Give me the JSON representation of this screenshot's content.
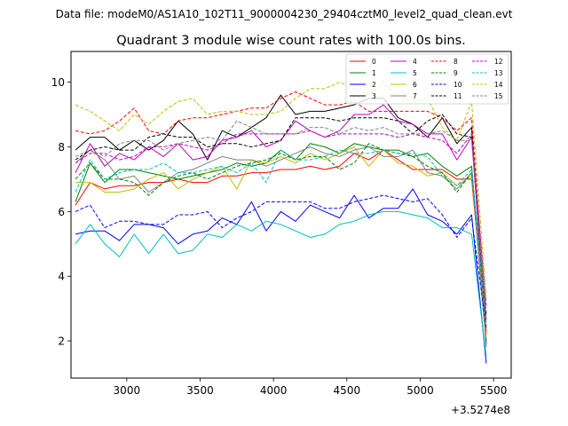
{
  "chart_data": {
    "type": "line",
    "suptitle": "Data file: modeM0/AS1A10_102T11_9000004230_29404cztM0_level2_quad_clean.evt",
    "title": "Quadrant 3 module wise count rates with 100.0s bins.",
    "xlabel": "",
    "ylabel": "",
    "xlim": [
      2620,
      5620
    ],
    "ylim": [
      0.85,
      10.95
    ],
    "x_offset_label": "+3.5274e8",
    "xticks": [
      3000,
      3500,
      4000,
      4500,
      5000,
      5500
    ],
    "xtick_labels": [
      "3000",
      "3500",
      "4000",
      "4500",
      "5000",
      "5500"
    ],
    "yticks": [
      2,
      4,
      6,
      8,
      10
    ],
    "ytick_labels": [
      "2",
      "4",
      "6",
      "8",
      "10"
    ],
    "legend_position": "top-right",
    "x": [
      2650,
      2750,
      2850,
      2950,
      3050,
      3150,
      3250,
      3350,
      3450,
      3550,
      3650,
      3750,
      3850,
      3950,
      4050,
      4150,
      4250,
      4350,
      4450,
      4550,
      4650,
      4750,
      4850,
      4950,
      5050,
      5150,
      5250,
      5350,
      5450
    ],
    "series": [
      {
        "name": "0",
        "color": "#ff0000",
        "dash": "solid",
        "values": [
          6.2,
          6.9,
          6.7,
          6.8,
          6.8,
          6.9,
          6.9,
          7.0,
          6.9,
          6.9,
          7.1,
          7.1,
          7.2,
          7.2,
          7.3,
          7.3,
          7.4,
          7.3,
          7.4,
          7.8,
          7.6,
          7.9,
          7.6,
          7.3,
          7.3,
          7.3,
          7.0,
          7.0,
          2.3
        ]
      },
      {
        "name": "1",
        "color": "#008000",
        "dash": "solid",
        "values": [
          6.3,
          7.5,
          6.9,
          7.3,
          7.3,
          7.2,
          7.1,
          7.0,
          7.1,
          7.2,
          7.3,
          7.5,
          7.4,
          7.5,
          7.9,
          7.6,
          8.1,
          8.0,
          7.8,
          8.1,
          8.0,
          7.9,
          7.9,
          7.7,
          7.8,
          7.4,
          7.1,
          7.4,
          2.0
        ]
      },
      {
        "name": "2",
        "color": "#0000ff",
        "dash": "solid",
        "values": [
          5.3,
          5.4,
          5.4,
          5.1,
          5.6,
          5.6,
          5.5,
          5.0,
          5.3,
          5.4,
          5.8,
          5.6,
          6.3,
          5.4,
          6.0,
          5.7,
          6.2,
          6.0,
          5.8,
          6.5,
          5.8,
          6.1,
          6.1,
          6.7,
          5.9,
          5.7,
          5.3,
          5.9,
          1.3
        ]
      },
      {
        "name": "3",
        "color": "#000000",
        "dash": "solid",
        "values": [
          7.9,
          8.3,
          8.3,
          7.9,
          8.2,
          7.9,
          8.2,
          8.8,
          8.4,
          7.6,
          8.5,
          8.3,
          8.6,
          8.9,
          9.6,
          9.0,
          9.1,
          9.1,
          9.2,
          9.3,
          9.5,
          9.5,
          8.9,
          8.7,
          8.3,
          8.9,
          8.1,
          8.6,
          1.9
        ]
      },
      {
        "name": "4",
        "color": "#bf00bf",
        "dash": "solid",
        "values": [
          7.2,
          8.1,
          7.4,
          7.8,
          7.6,
          8.0,
          7.7,
          8.1,
          7.6,
          7.7,
          8.2,
          8.3,
          8.5,
          8.0,
          8.2,
          8.8,
          8.5,
          8.3,
          8.5,
          9.0,
          9.0,
          9.3,
          8.8,
          8.7,
          8.4,
          8.4,
          7.6,
          8.3,
          2.2
        ]
      },
      {
        "name": "5",
        "color": "#00bfbf",
        "dash": "solid",
        "values": [
          5.0,
          5.6,
          5.0,
          4.6,
          5.3,
          4.7,
          5.3,
          4.7,
          4.8,
          5.3,
          5.2,
          5.6,
          5.4,
          5.7,
          5.6,
          5.4,
          5.2,
          5.3,
          5.6,
          5.7,
          5.9,
          6.0,
          6.0,
          5.9,
          5.8,
          5.5,
          5.5,
          5.3,
          1.5
        ]
      },
      {
        "name": "6",
        "color": "#bfbf00",
        "dash": "solid",
        "values": [
          6.9,
          6.9,
          6.6,
          6.6,
          6.7,
          7.0,
          7.2,
          6.7,
          7.0,
          7.2,
          7.4,
          6.7,
          7.6,
          7.5,
          7.7,
          7.5,
          7.8,
          7.6,
          7.8,
          8.0,
          7.4,
          7.9,
          7.5,
          7.4,
          7.1,
          7.2,
          6.8,
          7.1,
          2.1
        ]
      },
      {
        "name": "7",
        "color": "#808080",
        "dash": "solid",
        "values": [
          7.5,
          7.9,
          7.6,
          7.0,
          7.1,
          6.6,
          6.9,
          7.2,
          7.3,
          7.5,
          7.7,
          7.6,
          7.6,
          7.4,
          7.6,
          7.8,
          8.0,
          7.8,
          7.7,
          7.9,
          8.0,
          7.7,
          7.7,
          7.9,
          7.2,
          7.1,
          6.7,
          7.2,
          1.8
        ]
      },
      {
        "name": "8",
        "color": "#ff0000",
        "dash": "dashed",
        "values": [
          8.5,
          8.4,
          8.5,
          8.8,
          9.2,
          8.5,
          8.4,
          8.8,
          8.9,
          8.9,
          9.0,
          9.1,
          9.2,
          9.2,
          9.5,
          9.7,
          9.5,
          9.3,
          9.3,
          9.4,
          9.1,
          9.1,
          9.1,
          9.1,
          9.1,
          8.9,
          8.5,
          8.9,
          2.6
        ]
      },
      {
        "name": "9",
        "color": "#008000",
        "dash": "dashed",
        "values": [
          7.0,
          7.5,
          7.0,
          7.0,
          6.9,
          6.5,
          6.9,
          7.1,
          7.2,
          7.0,
          7.2,
          7.4,
          7.5,
          7.6,
          7.8,
          7.6,
          7.7,
          7.7,
          7.3,
          7.5,
          8.1,
          7.9,
          7.8,
          7.7,
          7.4,
          7.2,
          6.6,
          7.2,
          2.7
        ]
      },
      {
        "name": "10",
        "color": "#0000ff",
        "dash": "dashed",
        "values": [
          6.0,
          6.2,
          5.5,
          5.7,
          5.7,
          5.6,
          5.6,
          5.9,
          5.9,
          6.0,
          5.5,
          5.8,
          6.0,
          6.3,
          6.3,
          6.3,
          6.3,
          6.1,
          6.1,
          6.3,
          6.4,
          6.5,
          6.4,
          6.3,
          6.4,
          5.9,
          5.2,
          5.8,
          2.4
        ]
      },
      {
        "name": "11",
        "color": "#000000",
        "dash": "dashed",
        "values": [
          7.6,
          7.9,
          8.0,
          7.9,
          7.9,
          8.3,
          8.4,
          8.3,
          8.3,
          8.0,
          8.1,
          8.1,
          8.0,
          8.1,
          8.2,
          8.9,
          8.9,
          8.9,
          8.8,
          8.9,
          8.9,
          8.9,
          8.8,
          8.4,
          8.8,
          9.0,
          8.4,
          8.3,
          2.8
        ]
      },
      {
        "name": "12",
        "color": "#bf00bf",
        "dash": "dashed",
        "values": [
          7.5,
          7.8,
          7.8,
          7.6,
          7.7,
          8.0,
          8.0,
          8.1,
          8.0,
          7.9,
          8.1,
          8.4,
          8.4,
          8.4,
          8.4,
          8.4,
          8.5,
          8.3,
          8.4,
          8.4,
          8.4,
          8.4,
          8.3,
          8.4,
          8.3,
          8.2,
          7.8,
          8.4,
          3.1
        ]
      },
      {
        "name": "13",
        "color": "#00bfbf",
        "dash": "dashed",
        "values": [
          6.6,
          7.6,
          7.0,
          7.2,
          7.3,
          7.3,
          7.5,
          7.2,
          7.2,
          7.3,
          7.4,
          7.2,
          7.5,
          6.9,
          7.9,
          7.6,
          7.6,
          7.7,
          7.9,
          7.8,
          7.8,
          7.9,
          7.8,
          7.8,
          7.7,
          7.1,
          6.8,
          7.3,
          2.5
        ]
      },
      {
        "name": "14",
        "color": "#bfbf00",
        "dash": "dashed",
        "values": [
          9.3,
          9.1,
          8.8,
          8.5,
          9.0,
          8.7,
          9.1,
          9.4,
          9.5,
          9.0,
          9.1,
          9.1,
          9.0,
          9.0,
          9.1,
          9.5,
          9.8,
          9.8,
          10.0,
          9.8,
          9.6,
          10.0,
          9.5,
          9.4,
          9.5,
          8.6,
          8.2,
          9.4,
          3.3
        ]
      },
      {
        "name": "15",
        "color": "#808080",
        "dash": "dashed",
        "values": [
          7.7,
          7.9,
          7.7,
          8.1,
          8.2,
          8.2,
          7.9,
          8.1,
          8.2,
          8.3,
          8.2,
          8.8,
          8.6,
          8.4,
          8.4,
          8.4,
          8.6,
          8.6,
          8.4,
          8.6,
          8.5,
          8.6,
          8.4,
          8.4,
          8.4,
          8.5,
          8.2,
          8.2,
          2.9
        ]
      }
    ]
  }
}
